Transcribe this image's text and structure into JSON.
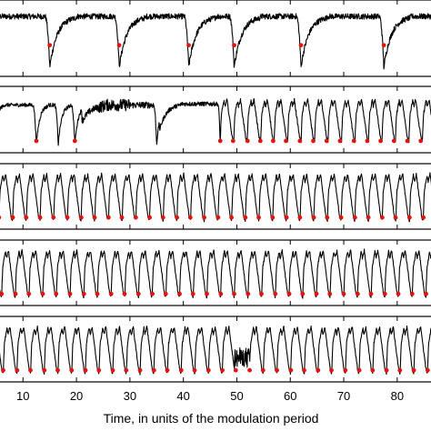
{
  "chart_data": {
    "type": "line",
    "xlabel": "Time, in units of the modulation period",
    "xlim": [
      4,
      87
    ],
    "x_ticks": [
      10,
      20,
      30,
      40,
      50,
      60,
      70,
      80
    ],
    "x_tick_labels": [
      "10",
      "20",
      "30",
      "40",
      "50",
      "60",
      "70",
      "80"
    ],
    "marker_color": "#e8120c",
    "trace_color": "#000000",
    "panels": [
      {
        "id": "panel-1",
        "regime": "slow spikes",
        "dips": [
          15.0,
          28.0,
          41.0,
          49.5,
          62.0,
          77.5
        ],
        "markers": [
          15.0,
          28.0,
          41.0,
          49.5,
          62.0,
          77.5
        ]
      },
      {
        "id": "panel-2",
        "regime": "intermittent",
        "dips": [
          4.2,
          12.5,
          16.6,
          19.7,
          35.0,
          46.9,
          49.3,
          52.0,
          54.4,
          56.8,
          59.2,
          61.8,
          64.3,
          66.8,
          69.3,
          71.9,
          74.4,
          76.9,
          79.4,
          81.9,
          84.4
        ],
        "markers": [
          4.2,
          12.5,
          19.7,
          46.9,
          49.3,
          52.0,
          54.4,
          56.8,
          59.2,
          61.8,
          64.3,
          66.8,
          69.3,
          71.9,
          74.4,
          76.9,
          79.4,
          81.9,
          84.4
        ]
      },
      {
        "id": "panel-3",
        "regime": "regular",
        "period": 2.56,
        "first_dip": 5.5,
        "markers": [
          5.5,
          8.1,
          10.6,
          13.2,
          15.7,
          18.3,
          20.9,
          23.4,
          26.0,
          28.5,
          31.1,
          33.7,
          36.2,
          38.8,
          41.3,
          43.9,
          46.5,
          49.0,
          51.6,
          54.1,
          56.7,
          59.3,
          61.8,
          64.4,
          66.9,
          69.5,
          72.1,
          74.6,
          77.2,
          79.7,
          82.3,
          84.9
        ]
      },
      {
        "id": "panel-4",
        "regime": "regular",
        "period": 2.56,
        "first_dip": 6.0,
        "markers": [
          6.0,
          8.6,
          11.1,
          13.7,
          16.2,
          18.8,
          21.4,
          23.9,
          26.5,
          29.0,
          31.6,
          34.2,
          36.7,
          39.3,
          41.8,
          44.4,
          47.0,
          49.5,
          52.1,
          54.6,
          57.2,
          59.8,
          62.3,
          64.9,
          67.4,
          70.0,
          72.6,
          75.1,
          77.7,
          80.2,
          82.8,
          85.4
        ]
      },
      {
        "id": "panel-5",
        "regime": "regular with defect",
        "period": 2.56,
        "first_dip": 6.3,
        "markers": [
          6.3,
          8.9,
          11.4,
          14.0,
          16.5,
          19.1,
          21.7,
          24.2,
          26.8,
          29.3,
          31.9,
          34.5,
          37.0,
          39.6,
          42.1,
          44.7,
          47.3,
          49.8,
          52.4,
          54.9,
          57.5,
          60.1,
          62.6,
          65.2,
          67.7,
          70.3,
          72.9,
          75.4,
          78.0,
          80.5,
          83.1,
          85.7
        ]
      }
    ]
  }
}
